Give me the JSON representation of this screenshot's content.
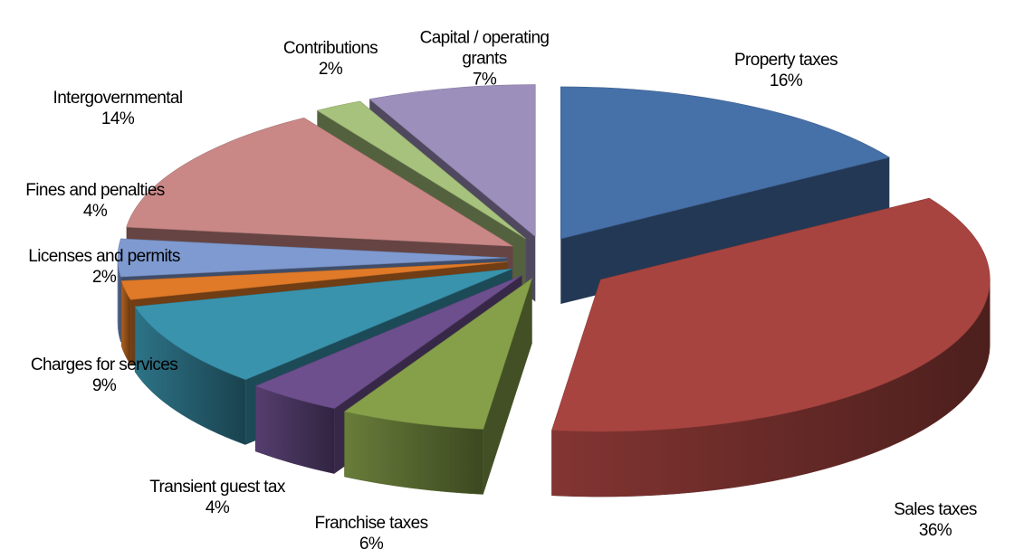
{
  "chart_data": {
    "type": "pie3d",
    "categories": [
      "Property taxes",
      "Sales taxes",
      "Franchise taxes",
      "Transient guest tax",
      "Charges for services",
      "Licenses and permits",
      "Fines and penalties",
      "Intergovernmental",
      "Contributions",
      "Capital / operating grants"
    ],
    "values": [
      16,
      36,
      6,
      4,
      9,
      2,
      4,
      14,
      2,
      7
    ],
    "value_labels": [
      "16%",
      "36%",
      "6%",
      "4%",
      "9%",
      "2%",
      "4%",
      "14%",
      "2%",
      "7%"
    ],
    "colors": [
      "#4670a8",
      "#a84440",
      "#86a04a",
      "#6d4f8e",
      "#3a93ad",
      "#e07a28",
      "#7f9ad0",
      "#c98886",
      "#a7c27c",
      "#9d8fbb"
    ]
  }
}
